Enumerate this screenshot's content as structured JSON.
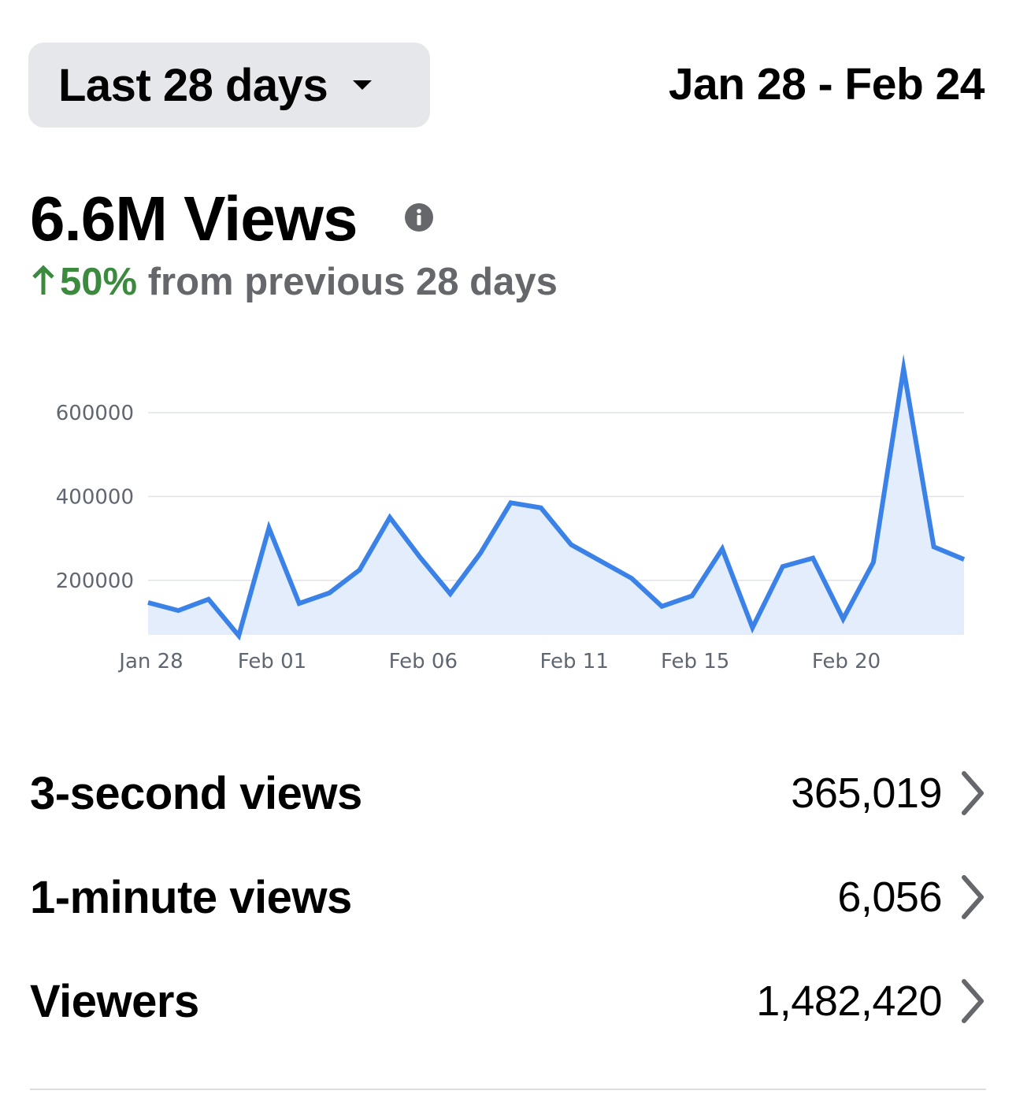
{
  "header": {
    "range_label": "Last 28 days",
    "date_range": "Jan 28 - Feb 24"
  },
  "summary": {
    "total": "6.6M Views",
    "change_pct": "50%",
    "change_text": " from previous 28 days",
    "info_icon": "info-icon",
    "change_color": "#3b8a3e"
  },
  "chart_data": {
    "type": "area",
    "line_color": "#3b82e8",
    "fill_color": "#e3edfb",
    "x": [
      "Jan 28",
      "Jan 29",
      "Jan 30",
      "Jan 31",
      "Feb 01",
      "Feb 02",
      "Feb 03",
      "Feb 04",
      "Feb 05",
      "Feb 06",
      "Feb 07",
      "Feb 08",
      "Feb 09",
      "Feb 10",
      "Feb 11",
      "Feb 12",
      "Feb 13",
      "Feb 14",
      "Feb 15",
      "Feb 16",
      "Feb 17",
      "Feb 18",
      "Feb 19",
      "Feb 20",
      "Feb 21",
      "Feb 22",
      "Feb 23",
      "Feb 24"
    ],
    "values": [
      147000,
      128000,
      155000,
      68000,
      325000,
      145000,
      170000,
      225000,
      350000,
      255000,
      168000,
      265000,
      385000,
      373000,
      285000,
      245000,
      205000,
      138000,
      163000,
      275000,
      87000,
      233000,
      253000,
      108000,
      243000,
      705000,
      280000,
      250000
    ],
    "x_ticks": [
      "Jan 28",
      "Feb 01",
      "Feb 06",
      "Feb 11",
      "Feb 15",
      "Feb 20"
    ],
    "y_ticks": [
      "600000",
      "400000",
      "200000"
    ],
    "y_tick_values": [
      600000,
      400000,
      200000
    ],
    "ylim": [
      70000,
      720000
    ],
    "grid": true
  },
  "metrics": [
    {
      "label": "3-second views",
      "value": "365,019"
    },
    {
      "label": "1-minute views",
      "value": "6,056"
    },
    {
      "label": "Viewers",
      "value": "1,482,420"
    }
  ]
}
